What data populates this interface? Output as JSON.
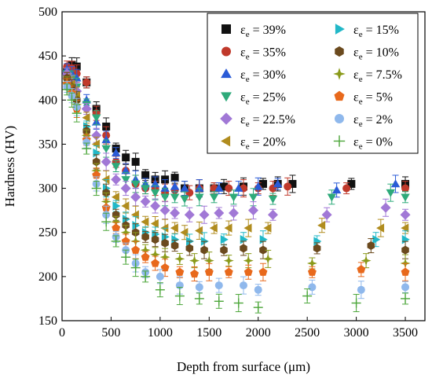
{
  "chart_data": {
    "type": "scatter",
    "xlabel": "Depth from surface (μm)",
    "ylabel": "Hardness (HV)",
    "xlim": [
      0,
      3700
    ],
    "ylim": [
      150,
      500
    ],
    "xticks": [
      0,
      500,
      1000,
      1500,
      2000,
      2500,
      3000,
      3500
    ],
    "yticks": [
      150,
      200,
      250,
      300,
      350,
      400,
      450,
      500
    ],
    "error_bars": true,
    "legend_position": "top-right",
    "legend_columns": 2,
    "series": [
      {
        "name": "ε_e = 39%",
        "label_base": "ε",
        "label_sub": "e",
        "label_rest": " = 39%",
        "marker": "square",
        "color": "#111111",
        "x": [
          50,
          100,
          150,
          250,
          350,
          450,
          550,
          650,
          750,
          850,
          950,
          1050,
          1150,
          1250,
          1400,
          1550,
          1650,
          1850,
          2050,
          2200,
          2350,
          2950,
          3500
        ],
        "y": [
          432,
          440,
          438,
          420,
          390,
          370,
          345,
          335,
          330,
          315,
          310,
          310,
          312,
          300,
          300,
          300,
          302,
          302,
          305,
          305,
          305,
          305,
          305
        ]
      },
      {
        "name": "ε_e = 35%",
        "label_base": "ε",
        "label_sub": "e",
        "label_rest": " = 35%",
        "marker": "circle",
        "color": "#c0392b",
        "x": [
          50,
          100,
          150,
          250,
          350,
          450,
          550,
          650,
          750,
          850,
          950,
          1050,
          1150,
          1300,
          1400,
          1550,
          1700,
          1850,
          2000,
          2150,
          2300,
          2900,
          3500
        ],
        "y": [
          438,
          436,
          430,
          420,
          385,
          360,
          330,
          320,
          305,
          300,
          300,
          295,
          298,
          295,
          300,
          300,
          300,
          300,
          300,
          300,
          302,
          300,
          300
        ]
      },
      {
        "name": "ε_e = 30%",
        "label_base": "ε",
        "label_sub": "e",
        "label_rest": " = 30%",
        "marker": "triangle-up",
        "color": "#2a5bd7",
        "x": [
          50,
          100,
          150,
          250,
          350,
          450,
          550,
          650,
          750,
          850,
          950,
          1050,
          1150,
          1250,
          1400,
          1600,
          1800,
          2000,
          2200,
          2800,
          3400
        ],
        "y": [
          435,
          430,
          425,
          400,
          375,
          355,
          340,
          320,
          310,
          305,
          305,
          300,
          302,
          300,
          300,
          300,
          300,
          302,
          305,
          298,
          305
        ]
      },
      {
        "name": "ε_e = 25%",
        "label_base": "ε",
        "label_sub": "e",
        "label_rest": " = 25%",
        "marker": "triangle-down",
        "color": "#2eaa7a",
        "x": [
          50,
          100,
          150,
          250,
          350,
          450,
          550,
          650,
          750,
          850,
          950,
          1050,
          1150,
          1250,
          1400,
          1550,
          1750,
          1950,
          2150,
          2750,
          3350,
          3500
        ],
        "y": [
          430,
          425,
          415,
          395,
          380,
          345,
          325,
          310,
          305,
          300,
          295,
          290,
          290,
          288,
          290,
          290,
          290,
          290,
          288,
          290,
          295,
          290
        ]
      },
      {
        "name": "ε_e = 22.5%",
        "label_base": "ε",
        "label_sub": "e",
        "label_rest": " = 22.5%",
        "marker": "diamond",
        "color": "#a178d6",
        "x": [
          50,
          100,
          150,
          250,
          350,
          450,
          550,
          650,
          750,
          850,
          950,
          1050,
          1150,
          1300,
          1450,
          1600,
          1750,
          1950,
          2150,
          2700,
          3300,
          3500
        ],
        "y": [
          430,
          420,
          410,
          390,
          360,
          330,
          310,
          300,
          290,
          285,
          280,
          275,
          272,
          270,
          270,
          272,
          272,
          275,
          270,
          270,
          278,
          270
        ]
      },
      {
        "name": "ε_e = 20%",
        "label_base": "ε",
        "label_sub": "e",
        "label_rest": " = 20%",
        "marker": "triangle-left",
        "color": "#b08c1e",
        "x": [
          50,
          100,
          150,
          250,
          350,
          450,
          550,
          650,
          750,
          850,
          950,
          1050,
          1150,
          1250,
          1400,
          1550,
          1700,
          1900,
          2100,
          2650,
          3250,
          3500
        ],
        "y": [
          425,
          418,
          405,
          380,
          350,
          310,
          290,
          280,
          270,
          262,
          260,
          255,
          255,
          250,
          252,
          255,
          255,
          255,
          255,
          258,
          255,
          255
        ]
      },
      {
        "name": "ε_e = 15%",
        "label_base": "ε",
        "label_sub": "e",
        "label_rest": " = 15%",
        "marker": "triangle-right",
        "color": "#22b8c8",
        "x": [
          50,
          100,
          150,
          250,
          350,
          450,
          550,
          650,
          750,
          850,
          950,
          1050,
          1150,
          1300,
          1450,
          1650,
          1850,
          2050,
          2600,
          3200,
          3500
        ],
        "y": [
          420,
          415,
          400,
          370,
          340,
          300,
          280,
          265,
          258,
          250,
          248,
          245,
          242,
          240,
          240,
          242,
          242,
          242,
          240,
          242,
          242
        ]
      },
      {
        "name": "ε_e = 10%",
        "label_base": "ε",
        "label_sub": "e",
        "label_rest": " = 10%",
        "marker": "hexagon",
        "color": "#6b4a1e",
        "x": [
          50,
          100,
          150,
          250,
          350,
          450,
          550,
          650,
          750,
          850,
          950,
          1050,
          1150,
          1300,
          1450,
          1650,
          1850,
          2050,
          2600,
          3150,
          3500
        ],
        "y": [
          425,
          415,
          400,
          365,
          330,
          295,
          270,
          258,
          250,
          245,
          242,
          238,
          235,
          232,
          230,
          230,
          232,
          230,
          232,
          235,
          230
        ]
      },
      {
        "name": "ε_e = 7.5%",
        "label_base": "ε",
        "label_sub": "e",
        "label_rest": " = 7.5%",
        "marker": "star",
        "color": "#8a9a1a",
        "x": [
          50,
          100,
          150,
          250,
          350,
          450,
          550,
          650,
          750,
          850,
          950,
          1050,
          1200,
          1350,
          1500,
          1700,
          1900,
          2100,
          2550,
          3100,
          3500
        ],
        "y": [
          420,
          410,
          395,
          360,
          320,
          285,
          262,
          250,
          240,
          230,
          225,
          222,
          220,
          218,
          218,
          218,
          218,
          220,
          215,
          218,
          215
        ]
      },
      {
        "name": "ε_e = 5%",
        "label_base": "ε",
        "label_sub": "e",
        "label_rest": " = 5%",
        "marker": "pentagon",
        "color": "#e8691c",
        "x": [
          50,
          100,
          150,
          250,
          350,
          450,
          550,
          650,
          750,
          850,
          950,
          1050,
          1200,
          1350,
          1500,
          1700,
          1900,
          2050,
          2550,
          3050,
          3500
        ],
        "y": [
          418,
          408,
          390,
          355,
          315,
          278,
          255,
          240,
          230,
          222,
          215,
          210,
          205,
          203,
          205,
          205,
          205,
          205,
          205,
          208,
          205
        ]
      },
      {
        "name": "ε_e = 2%",
        "label_base": "ε",
        "label_sub": "e",
        "label_rest": " = 2%",
        "marker": "circle",
        "color": "#8fb8ec",
        "x": [
          50,
          100,
          150,
          250,
          350,
          450,
          550,
          650,
          750,
          850,
          1000,
          1200,
          1400,
          1600,
          1850,
          2000,
          2550,
          3050,
          3500
        ],
        "y": [
          415,
          405,
          392,
          352,
          305,
          270,
          245,
          230,
          215,
          205,
          200,
          190,
          188,
          190,
          190,
          185,
          188,
          185,
          188
        ]
      },
      {
        "name": "ε_e = 0%",
        "label_base": "ε",
        "label_sub": "e",
        "label_rest": " = 0%",
        "marker": "plus",
        "color": "#4ca63a",
        "x": [
          50,
          100,
          150,
          250,
          350,
          450,
          550,
          650,
          750,
          850,
          1000,
          1200,
          1400,
          1600,
          1800,
          2000,
          2500,
          3000,
          3500
        ],
        "y": [
          412,
          400,
          385,
          345,
          300,
          262,
          240,
          222,
          210,
          200,
          185,
          178,
          175,
          172,
          170,
          165,
          178,
          170,
          175
        ]
      }
    ]
  }
}
